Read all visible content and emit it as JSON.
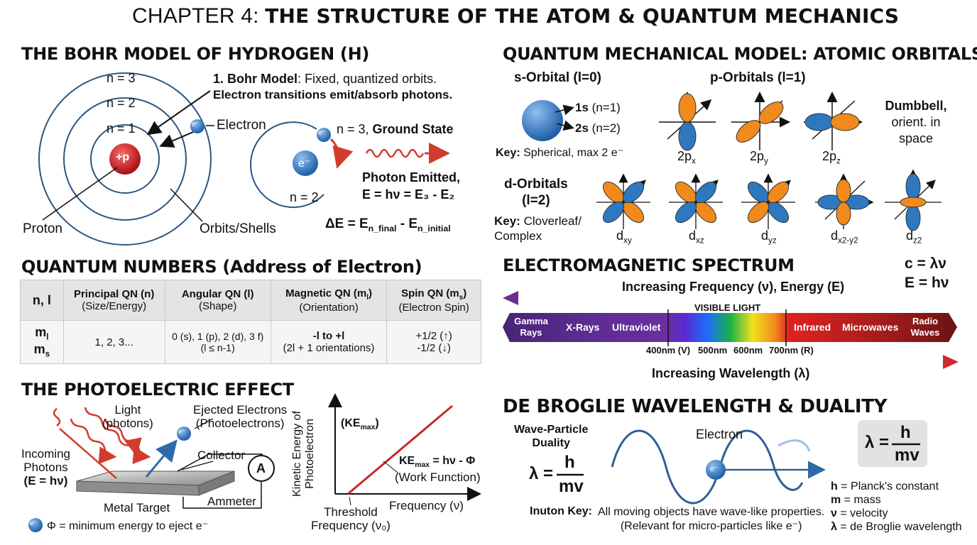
{
  "title": {
    "prefix": "CHAPTER 4: ",
    "main": "THE STRUCTURE OF THE ATOM & QUANTUM MECHANICS"
  },
  "bohr": {
    "heading": "THE BOHR MODEL OF HYDROGEN (H)",
    "n3": "n = 3",
    "n2": "n = 2",
    "n1": "n = 1",
    "nucleus": "+p",
    "electron_symbol": "e⁻",
    "electron_label": "Electron",
    "proton_label": "Proton",
    "orbits_label": "Orbits/Shells",
    "desc_bold": "1. Bohr Model",
    "desc_rest": ": Fixed, quantized orbits.",
    "desc_line2": "Electron transitions emit/absorb photons.",
    "n3_label": "n = 3, ",
    "ground_state": "Ground State",
    "inner_n2": "n = 2",
    "photon_line1": "Photon Emitted,",
    "photon_line2": "E = hν = E₃ - E₂",
    "delta_e": "ΔE = E",
    "delta_sub1": "n_final",
    "delta_mid": " - E",
    "delta_sub2": "n_initial"
  },
  "orbitals": {
    "heading": "QUANTUM MECHANICAL MODEL: ATOMIC ORBITALS",
    "s_title": "s-Orbital (l=0)",
    "s_1s": "1s",
    "s_1s_n": "(n=1)",
    "s_2s": "2s",
    "s_2s_n": "(n=2)",
    "s_key_bold": "Key:",
    "s_key": " Spherical, max 2 e⁻",
    "p_title": "p-Orbitals (l=1)",
    "p_labels": [
      "2p",
      "2p",
      "2p"
    ],
    "p_subs": [
      "x",
      "y",
      "z"
    ],
    "p_note": [
      "Dumbbell,",
      "orient. in",
      "space"
    ],
    "d_title": [
      "d-Orbitals",
      "(l=2)"
    ],
    "d_key_bold": "Key:",
    "d_key": [
      " Cloverleaf/",
      "Complex"
    ],
    "d_labels": [
      "d",
      "d",
      "d",
      "d",
      "d"
    ],
    "d_subs": [
      "xy",
      "xz",
      "yz",
      "x2-y2",
      "z2"
    ]
  },
  "qn": {
    "heading_bold": "QUANTUM NUMBERS",
    "heading_rest": " (Address of Electron)",
    "headers": [
      {
        "l1": "n, l",
        "l2": ""
      },
      {
        "l1": "Principal QN (n)",
        "l2": "(Size/Energy)"
      },
      {
        "l1": "Angular QN (l)",
        "l2": "(Shape)"
      },
      {
        "l1": "Magnetic QN (m",
        "l1sub": "l",
        "l1end": ")",
        "l2": "(Orientation)"
      },
      {
        "l1": "Spin QN (m",
        "l1sub": "s",
        "l1end": ")",
        "l2": "(Electron Spin)"
      }
    ],
    "row_label": [
      "m",
      "m"
    ],
    "row_label_subs": [
      "l",
      "s"
    ],
    "row": [
      "1, 2, 3...",
      "0 (s), 1 (p), 2 (d), 3 f)",
      "-l to +l",
      "+1/2 (↑)"
    ],
    "row2": [
      "",
      "(l ≤ n-1)",
      "(2l + 1 orientations)",
      "-1/2 (↓)"
    ]
  },
  "em": {
    "heading": "ELECTROMAGNETIC SPECTRUM",
    "eq1": "c = λν",
    "eq2": "E = hν",
    "freq_label": "Increasing Frequency (ν), Energy (E)",
    "visible": "VISIBLE LIGHT",
    "bands": [
      "Gamma Rays",
      "X-Rays",
      "Ultraviolet",
      "Infrared",
      "Microwaves",
      "Radio Waves"
    ],
    "wavelengths": [
      "400nm (V)",
      "500nm",
      "600nm",
      "700nm (R)"
    ],
    "wave_label": "Increasing Wavelength (λ)"
  },
  "photo": {
    "heading": "THE PHOTOELECTRIC EFFECT",
    "light": [
      "Light",
      "(photons)"
    ],
    "ejected": [
      "Ejected Electrons",
      "(Photoelectrons)"
    ],
    "incoming": [
      "Incoming",
      "Photons",
      "(E = hν)"
    ],
    "collector": "Collector",
    "ammeter_symbol": "A",
    "ammeter": "Ammeter",
    "metal": "Metal Target",
    "phi_note": "Φ = minimum energy to eject e⁻",
    "electron_symbol": "e⁻",
    "graph_ylabel": [
      "Kinetic Energy of",
      "Photoelectron"
    ],
    "ke_max": "(KE",
    "ke_max_sub": "max",
    "ke_max_end": ")",
    "eq_ke": "KE",
    "eq_ke_sub": "max",
    "eq_ke_rest": " = hν - Φ",
    "work_function": "(Work Function)",
    "threshold": [
      "Threshold",
      "Frequency (ν₀)"
    ],
    "xlabel": "Frequency (ν)"
  },
  "debroglie": {
    "heading": "DE BROGLIE WAVELENGTH & DUALITY",
    "duality": [
      "Wave-Particle",
      "Duality"
    ],
    "lambda": "λ =",
    "h": "h",
    "mv": "mv",
    "electron": "Electron",
    "electron_symbol": "e⁻",
    "key_label": "Inuton Key:",
    "key_text": [
      "All moving objects have wave-like properties.",
      "(Relevant for micro-particles like e⁻)"
    ],
    "legend": [
      {
        "sym": "h",
        "text": " = Planck's constant"
      },
      {
        "sym": "m",
        "text": " = mass"
      },
      {
        "sym": "ν",
        "text": " = velocity"
      },
      {
        "sym": "λ",
        "text": " = de Broglie wavelength"
      }
    ]
  },
  "colors": {
    "nucleus": "#c8191e",
    "electron": "#2d6db5",
    "orange": "#f08a1c",
    "blue": "#2e78c0",
    "red_arrow": "#d23c2c",
    "purple": "#6a2c91"
  }
}
